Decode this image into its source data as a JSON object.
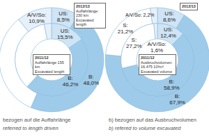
{
  "chart_data": [
    {
      "type": "pie",
      "title": "bezogen auf die Auffahrlänge",
      "subtitle": "referred to length driven",
      "data_labels": true,
      "series": [
        {
          "name": "2011/12",
          "values": [
            15.5,
            46.2,
            35.0,
            3.3
          ],
          "value_labels": [
            "US: 15,5%",
            "B: 46,2%",
            null,
            null
          ],
          "colors": [
            "#cfe4f4",
            "#9fcbea",
            "#ffffff",
            "#e6f0f9"
          ],
          "annotations": [
            "Auffahrlänge 155 km",
            "Excavated length"
          ]
        },
        {
          "name": "2012/13",
          "values": [
            8.5,
            48.0,
            32.6,
            10.9
          ],
          "value_labels": [
            "US: 8,5%",
            "B: 48,0%",
            null,
            "A/V/So: 10,9%"
          ],
          "colors": [
            "#cfe4f4",
            "#9fcbea",
            "#ffffff",
            "#e6f0f9"
          ],
          "annotations": [
            "Auffahrlänge: 230 km",
            "Excavated length"
          ]
        }
      ]
    },
    {
      "type": "pie",
      "title": "b) bezogen auf das Ausbruchvolumen",
      "subtitle": "b) refered to volume excavated",
      "data_labels": true,
      "series": [
        {
          "name": "2011/12",
          "values": [
            12.4,
            58.9,
            27.2,
            1.6
          ],
          "value_labels": [
            "US: 12,4%",
            "B: 58,9%",
            "S: 27,2%",
            "A/V/So: 1,6%"
          ],
          "colors": [
            "#cfe4f4",
            "#9fcbea",
            "#ffffff",
            "#e6f0f9"
          ],
          "annotations": [
            "Ausbruchvolumen:",
            "16.475 10³m³",
            "Excavated volume"
          ]
        },
        {
          "name": "2012/13",
          "values": [
            8.6,
            67.9,
            21.2,
            2.2
          ],
          "value_labels": [
            "US: 8,6%",
            "B: 67,9%",
            "S: 21,2%",
            "A/V/So: 2,2%"
          ],
          "colors": [
            "#cfe4f4",
            "#9fcbea",
            "#ffffff",
            "#e6f0f9"
          ]
        }
      ]
    }
  ]
}
